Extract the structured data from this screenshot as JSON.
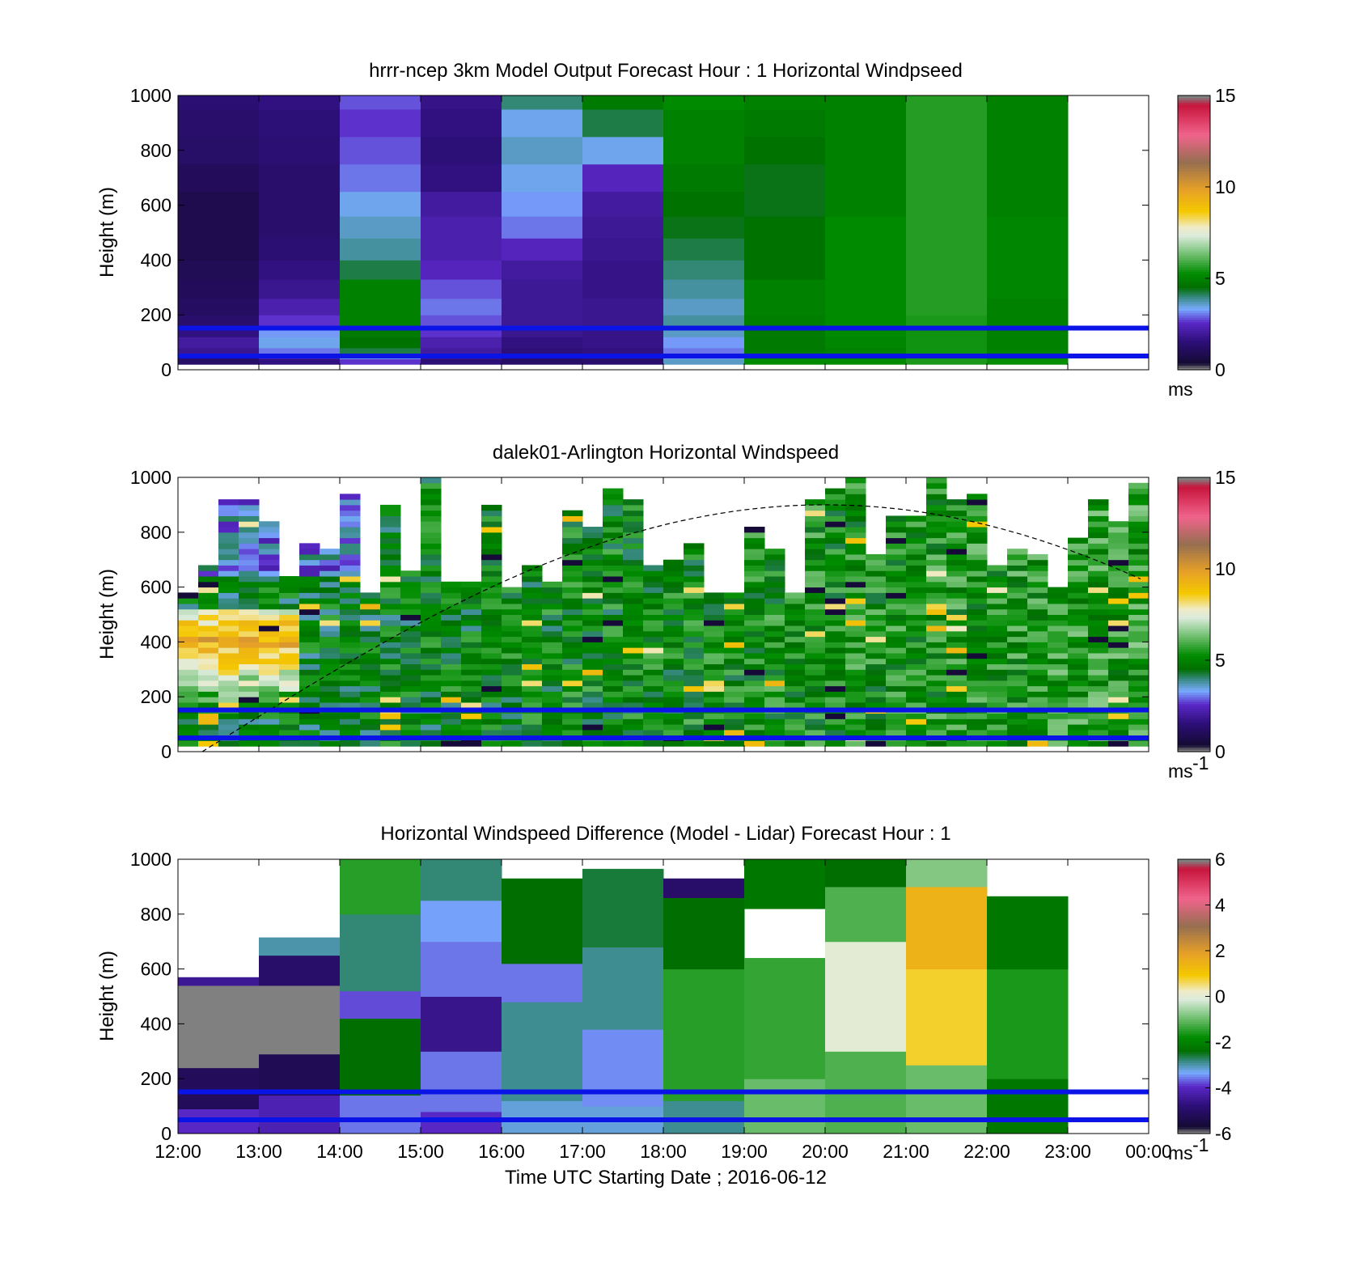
{
  "figure": {
    "xlabel": "Time UTC  Starting Date ; 2016-06-12",
    "x_ticks": [
      "12:00",
      "13:00",
      "14:00",
      "15:00",
      "16:00",
      "17:00",
      "18:00",
      "19:00",
      "20:00",
      "21:00",
      "22:00",
      "23:00",
      "00:00"
    ]
  },
  "chart_data": [
    {
      "type": "heatmap",
      "title": "hrrr-ncep 3km Model Output   Forecast Hour : 1 Horizontal Windpseed",
      "ylabel": "Height (m)",
      "ylim": [
        0,
        1000
      ],
      "y_ticks": [
        "0",
        "200",
        "400",
        "600",
        "800",
        "1000"
      ],
      "x_hours": [
        12,
        13,
        14,
        15,
        16,
        17,
        18,
        19,
        20,
        21,
        22,
        23
      ],
      "y_levels": [
        20,
        40,
        60,
        80,
        120,
        160,
        200,
        260,
        330,
        400,
        480,
        560,
        650,
        750,
        850,
        950
      ],
      "values": [
        [
          1.2,
          1.6,
          2.6,
          1.5,
          1.2,
          1.3,
          3.6,
          5.2,
          5.2,
          5.5,
          5.3
        ],
        [
          1.4,
          2.2,
          3.4,
          1.8,
          1.4,
          1.5,
          3.2,
          5.0,
          5.0,
          5.5,
          5.1
        ],
        [
          1.8,
          3.0,
          4.2,
          2.0,
          1.5,
          1.6,
          3.0,
          4.8,
          5.0,
          5.4,
          5.0
        ],
        [
          2.0,
          3.4,
          4.6,
          2.2,
          1.6,
          1.7,
          3.2,
          4.8,
          5.1,
          5.4,
          5.0
        ],
        [
          1.6,
          3.2,
          4.8,
          2.6,
          1.8,
          1.7,
          3.6,
          4.8,
          5.2,
          5.4,
          5.0
        ],
        [
          1.3,
          2.6,
          5.0,
          2.8,
          1.9,
          1.8,
          3.8,
          4.9,
          5.2,
          5.5,
          5.0
        ],
        [
          1.1,
          2.2,
          5.0,
          3.0,
          1.9,
          1.8,
          3.6,
          5.0,
          5.2,
          5.6,
          5.0
        ],
        [
          1.0,
          1.8,
          5.0,
          2.8,
          1.9,
          1.7,
          3.8,
          5.0,
          5.2,
          5.6,
          5.1
        ],
        [
          0.9,
          1.6,
          4.2,
          2.4,
          2.0,
          1.7,
          4.0,
          4.6,
          5.2,
          5.6,
          5.1
        ],
        [
          0.8,
          1.4,
          3.8,
          2.2,
          2.4,
          1.8,
          4.2,
          4.6,
          5.2,
          5.6,
          5.1
        ],
        [
          0.8,
          1.3,
          3.6,
          2.2,
          3.0,
          1.9,
          4.4,
          4.6,
          5.2,
          5.6,
          5.1
        ],
        [
          0.8,
          1.3,
          3.4,
          2.0,
          3.2,
          2.0,
          4.6,
          4.4,
          5.0,
          5.6,
          5.0
        ],
        [
          1.0,
          1.3,
          3.0,
          1.6,
          3.4,
          2.4,
          4.8,
          4.4,
          5.0,
          5.6,
          5.0
        ],
        [
          1.2,
          1.4,
          2.8,
          1.5,
          3.6,
          3.4,
          5.0,
          4.6,
          5.0,
          5.6,
          5.0
        ],
        [
          1.3,
          1.5,
          2.6,
          1.6,
          3.4,
          4.2,
          5.0,
          4.8,
          5.0,
          5.6,
          5.0
        ],
        [
          1.4,
          1.6,
          2.8,
          1.7,
          4.0,
          4.8,
          5.2,
          5.0,
          5.0,
          5.6,
          5.0
        ]
      ],
      "colorbar": {
        "min": 0,
        "max": 15,
        "ticks": [
          "0",
          "5",
          "10",
          "15"
        ],
        "unit": "ms"
      },
      "hlines_m": [
        50,
        152
      ]
    },
    {
      "type": "heatmap",
      "title": "dalek01-Arlington  Horizontal Windspeed",
      "ylabel": "Height (m)",
      "ylim": [
        0,
        1000
      ],
      "y_ticks": [
        "0",
        "200",
        "400",
        "600",
        "800",
        "1000"
      ],
      "time_range_h": [
        12.0,
        23.9
      ],
      "profiles_per_hour": 4,
      "low_jet": {
        "center_height_m": 400,
        "peak_ms": 9.5,
        "time_range_h": [
          12.0,
          13.5
        ]
      },
      "colorbar": {
        "min": 0,
        "max": 15,
        "ticks": [
          "0",
          "5",
          "10",
          "15"
        ],
        "unit": "ms",
        "unit_sup": "-1"
      },
      "hlines_m": [
        50,
        152
      ],
      "dashed_curve_peak_m": 900
    },
    {
      "type": "heatmap",
      "title": "Horizontal Windspeed Difference (Model - Lidar) Forecast Hour : 1",
      "ylabel": "Height (m)",
      "ylim": [
        0,
        1000
      ],
      "y_ticks": [
        "0",
        "200",
        "400",
        "600",
        "800",
        "1000"
      ],
      "x_hours": [
        12,
        13,
        14,
        15,
        16,
        17,
        18,
        19,
        20,
        21,
        22,
        23
      ],
      "colorbar": {
        "min": -6,
        "max": 6,
        "ticks": [
          "-6",
          "-4",
          "-2",
          "0",
          "2",
          "4",
          "6"
        ],
        "unit": "ms",
        "unit_sup": "-1"
      },
      "hlines_m": [
        50,
        152
      ],
      "missing_value_block": {
        "time_range_h": [
          12,
          14
        ],
        "height_range_m": [
          290,
          540
        ]
      },
      "columns": [
        {
          "top": 570,
          "bands": [
            [
              0,
              90,
              -4
            ],
            [
              90,
              240,
              -5.2
            ],
            [
              240,
              540,
              -9
            ],
            [
              540,
              570,
              -4.5
            ]
          ]
        },
        {
          "top": 715,
          "bands": [
            [
              0,
              140,
              -4.2
            ],
            [
              140,
              290,
              -5.3
            ],
            [
              290,
              540,
              -9
            ],
            [
              540,
              650,
              -5
            ],
            [
              650,
              715,
              -3
            ]
          ]
        },
        {
          "top": 1000,
          "bands": [
            [
              0,
              140,
              -3.6
            ],
            [
              140,
              420,
              -2.4
            ],
            [
              420,
              520,
              -3.8
            ],
            [
              520,
              800,
              -2.8
            ],
            [
              800,
              1000,
              -1.5
            ]
          ]
        },
        {
          "top": 1000,
          "bands": [
            [
              0,
              80,
              -4
            ],
            [
              80,
              300,
              -3.6
            ],
            [
              300,
              500,
              -4.6
            ],
            [
              500,
              700,
              -3.6
            ],
            [
              700,
              850,
              -3.4
            ],
            [
              850,
              1000,
              -2.8
            ]
          ]
        },
        {
          "top": 930,
          "bands": [
            [
              0,
              120,
              -3.2
            ],
            [
              120,
              480,
              -2.9
            ],
            [
              480,
              620,
              -3.6
            ],
            [
              620,
              930,
              -2.4
            ]
          ]
        },
        {
          "top": 965,
          "bands": [
            [
              0,
              100,
              -3.2
            ],
            [
              100,
              380,
              -3.5
            ],
            [
              380,
              680,
              -2.9
            ],
            [
              680,
              965,
              -2.6
            ]
          ]
        },
        {
          "top": 930,
          "bands": [
            [
              0,
              120,
              -2.9
            ],
            [
              120,
              600,
              -1.5
            ],
            [
              600,
              860,
              -2.4
            ],
            [
              860,
              930,
              -5
            ]
          ]
        },
        {
          "top": 1000,
          "bands": [
            [
              0,
              200,
              -1
            ],
            [
              200,
              640,
              -1.4
            ],
            [
              640,
              820,
              null
            ],
            [
              820,
              1000,
              -2.2
            ]
          ]
        },
        {
          "top": 1000,
          "bands": [
            [
              0,
              300,
              -1.2
            ],
            [
              300,
              700,
              0
            ],
            [
              700,
              900,
              -1.2
            ],
            [
              900,
              1000,
              -2.4
            ]
          ]
        },
        {
          "top": 1000,
          "bands": [
            [
              0,
              250,
              -1
            ],
            [
              250,
              600,
              0.8
            ],
            [
              600,
              900,
              1.5
            ],
            [
              900,
              1000,
              -0.8
            ]
          ]
        },
        {
          "top": 865,
          "bands": [
            [
              0,
              200,
              -2.2
            ],
            [
              200,
              600,
              -1.6
            ],
            [
              600,
              865,
              -2.2
            ]
          ]
        }
      ]
    }
  ]
}
